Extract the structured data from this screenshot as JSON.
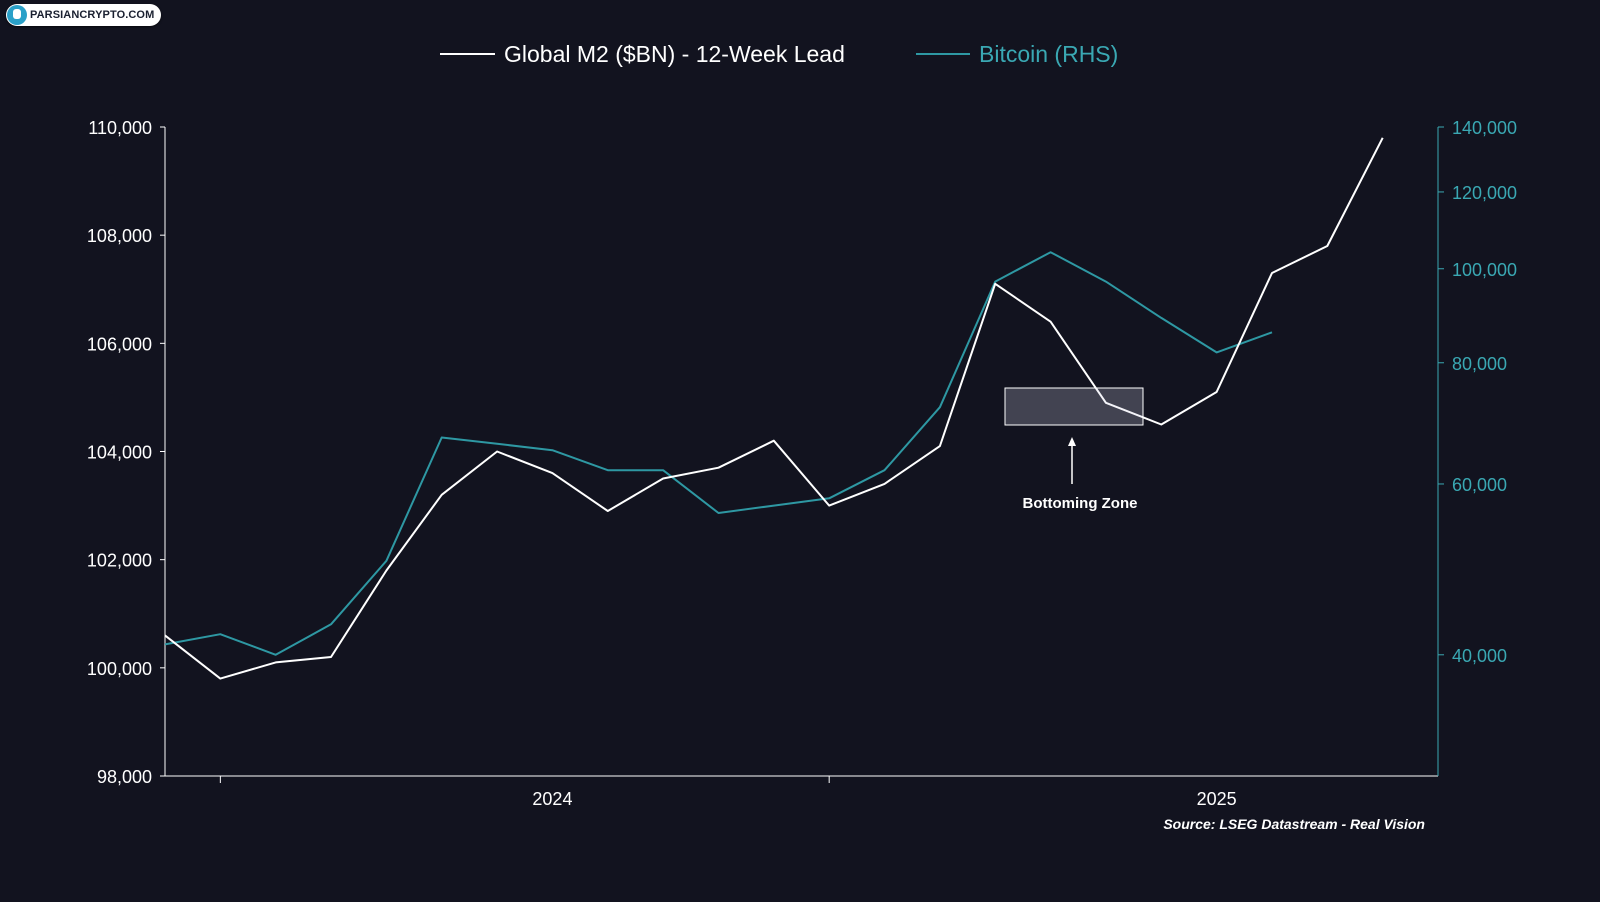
{
  "logo": {
    "text": "PARSIANCRYPTO.COM"
  },
  "chart_data": {
    "type": "line",
    "legend": {
      "placement": "top-center",
      "entries": [
        "Global M2 ($BN) - 12-Week Lead",
        "Bitcoin (RHS)"
      ]
    },
    "source": "Source: LSEG Datastream - Real Vision",
    "colors": {
      "background": "#12131f",
      "m2": "#ffffff",
      "btc": "#2e98a3",
      "axis_right": "#3aa8b3"
    },
    "x_axis": {
      "tick_labels": [
        "2024",
        "2025"
      ],
      "range": [
        "2023-09",
        "2025-08"
      ]
    },
    "y_left": {
      "range": [
        98000,
        110000
      ],
      "tick_labels": [
        "98,000",
        "100,000",
        "102,000",
        "104,000",
        "106,000",
        "108,000",
        "110,000"
      ]
    },
    "y_right": {
      "scale": "log",
      "range": [
        30000,
        140000
      ],
      "tick_labels": [
        "40,000",
        "60,000",
        "80,000",
        "100,000",
        "120,000",
        "140,000"
      ]
    },
    "annotation": {
      "text": "Bottoming Zone"
    },
    "series": [
      {
        "name": "Global M2 ($BN) - 12-Week Lead",
        "axis": "left",
        "x": [
          "2023-09",
          "2023-10",
          "2023-11",
          "2023-12",
          "2024-01",
          "2024-02",
          "2024-03",
          "2024-04",
          "2024-05",
          "2024-06",
          "2024-07",
          "2024-08",
          "2024-09",
          "2024-10",
          "2024-11",
          "2024-12",
          "2025-01",
          "2025-02",
          "2025-03",
          "2025-04",
          "2025-05",
          "2025-06",
          "2025-07"
        ],
        "values": [
          100600,
          99800,
          100100,
          100200,
          101800,
          103200,
          104000,
          103600,
          102900,
          103500,
          103700,
          104200,
          103000,
          103400,
          104100,
          107100,
          106400,
          104900,
          104500,
          105100,
          107300,
          107800,
          109800
        ]
      },
      {
        "name": "Bitcoin (RHS)",
        "axis": "right",
        "x": [
          "2023-09",
          "2023-10",
          "2023-11",
          "2023-12",
          "2024-01",
          "2024-02",
          "2024-03",
          "2024-04",
          "2024-05",
          "2024-06",
          "2024-07",
          "2024-08",
          "2024-09",
          "2024-10",
          "2024-11",
          "2024-12",
          "2025-01",
          "2025-02",
          "2025-03",
          "2025-04",
          "2025-05"
        ],
        "values": [
          41000,
          42000,
          40000,
          43000,
          50000,
          67000,
          66000,
          65000,
          62000,
          62000,
          56000,
          57000,
          58000,
          62000,
          72000,
          97000,
          104000,
          97000,
          89000,
          82000,
          86000
        ]
      }
    ]
  }
}
